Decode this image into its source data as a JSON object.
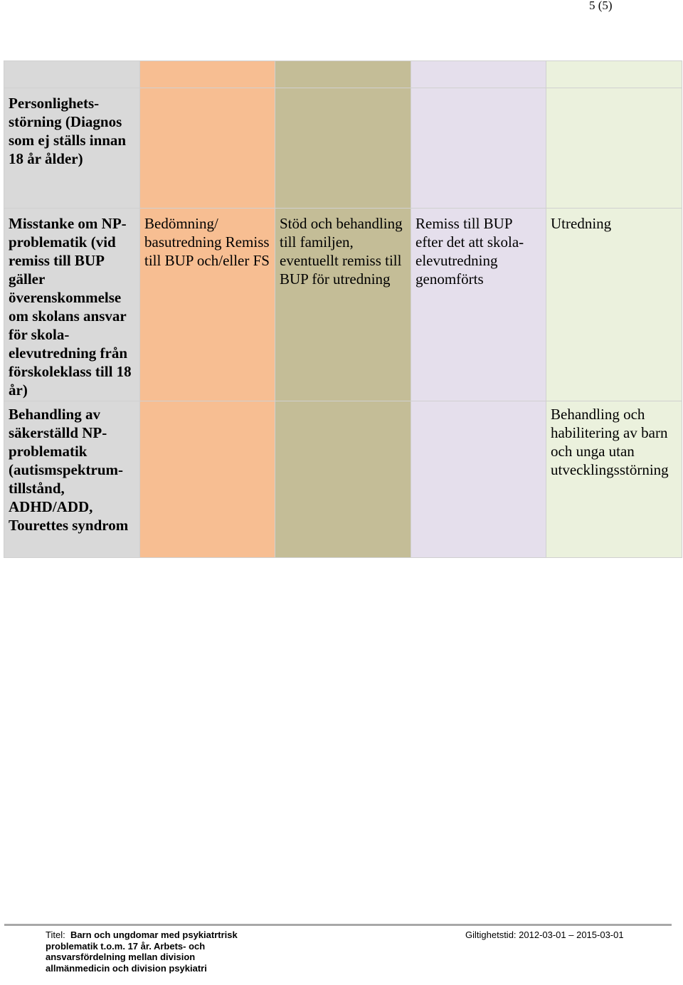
{
  "page": {
    "number": "5 (5)"
  },
  "table": {
    "rows": [
      {
        "head": "Personlighets-\nstörning (Diagnos som ej ställs innan 18 år ålder)",
        "cells": [
          "",
          "",
          "",
          ""
        ]
      },
      {
        "head": "Misstanke om NP-problematik (vid remiss till BUP gäller överenskommelse om skolans ansvar för skola-elevutredning från förskoleklass till 18 år)",
        "cells": [
          "Bedömning/ basutredning Remiss till BUP och/eller FS",
          "Stöd och behandling till familjen, eventuellt remiss till BUP för utredning",
          "Remiss till BUP efter det att skola-elevutredning genomförts",
          "Utredning"
        ]
      },
      {
        "head": "Behandling av säkerställd NP-problematik (autismspektrum-tillstånd, ADHD/ADD, Tourettes syndrom",
        "cells": [
          "",
          "",
          "",
          "Behandling och habilitering av barn och unga utan utvecklingsstörning"
        ]
      }
    ]
  },
  "footer": {
    "title_label": "Titel:",
    "title_text": "Barn och ungdomar med psykiatrtrisk problematik t.o.m. 17 år. Arbets- och ansvarsfördelning mellan division allmänmedicin och division psykiatri",
    "validity": "Giltighetstid: 2012-03-01 – 2015-03-01"
  },
  "colors": {
    "col0": "#d9d9d9",
    "col1": "#f7be92",
    "col2": "#c4bd97",
    "col3": "#e5dfec",
    "col4": "#ebf1dd"
  }
}
